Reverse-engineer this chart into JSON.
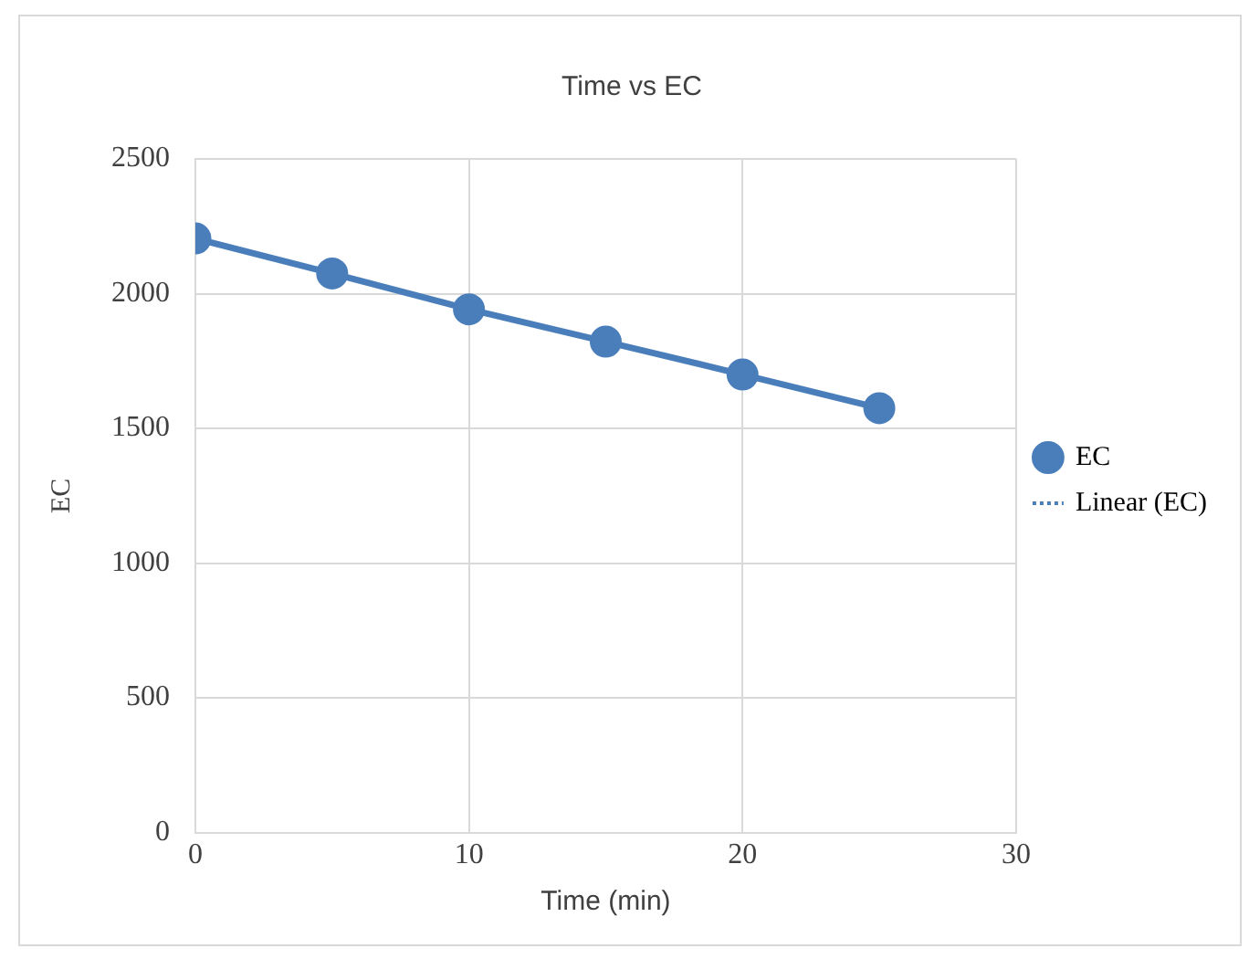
{
  "chart_data": {
    "type": "line",
    "title": "Time vs EC",
    "xlabel": "Time (min)",
    "ylabel": "EC",
    "x": [
      0,
      5,
      10,
      15,
      20,
      25
    ],
    "series": [
      {
        "name": "EC",
        "color": "#4a7ebb",
        "values": [
          2205,
          2075,
          1942,
          1822,
          1700,
          1575
        ],
        "marker": "circle",
        "line_style": "solid"
      },
      {
        "name": "Linear (EC)",
        "color": "#4a7ebb",
        "type": "line",
        "values": [
          null,
          null,
          null,
          null,
          null,
          null
        ],
        "marker": "none",
        "line_style": "dotted"
      }
    ],
    "xlim": [
      0,
      30
    ],
    "xticks": [
      0,
      10,
      20,
      30
    ],
    "ylim": [
      0,
      2500
    ],
    "yticks": [
      0,
      500,
      1000,
      1500,
      2000,
      2500
    ],
    "grid": true,
    "legend": "right"
  }
}
